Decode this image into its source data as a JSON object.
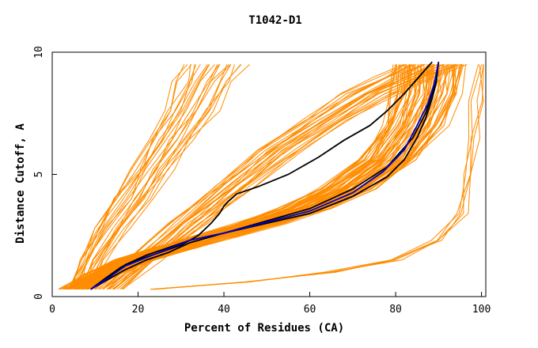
{
  "chart_data": {
    "type": "line",
    "title": "T1042-D1",
    "xlabel": "Percent of Residues (CA)",
    "ylabel": "Distance Cutoff, A",
    "xlim": [
      0,
      101
    ],
    "ylim": [
      0,
      10
    ],
    "x_ticks": [
      0,
      20,
      40,
      60,
      80,
      100
    ],
    "y_ticks": [
      0,
      5,
      10
    ],
    "grid": false,
    "colors": {
      "models": "#ff8c00",
      "highlight_black": "#000000",
      "highlight_blue": "#0000cc",
      "axis": "#000000"
    },
    "series_groups": [
      {
        "name": "Steep near-x-axis bundle",
        "color": "#ff8c00",
        "count": 22,
        "template_x": [
          3,
          6,
          10,
          14,
          18,
          22,
          26,
          29,
          31
        ],
        "template_y": [
          0.3,
          1.5,
          2.8,
          4,
          5.2,
          6.4,
          7.6,
          8.8,
          9.5
        ],
        "x_shift_range": [
          0,
          14
        ]
      },
      {
        "name": "Central models bundle",
        "color": "#ff8c00",
        "count": 60,
        "template_x": [
          6,
          12,
          20,
          30,
          40,
          50,
          60,
          70,
          80,
          86,
          89,
          90
        ],
        "template_y": [
          0.3,
          0.9,
          1.5,
          2.0,
          2.5,
          3.0,
          3.6,
          4.4,
          5.6,
          7.0,
          8.3,
          9.5
        ],
        "x_shift_range": [
          -10,
          6
        ]
      },
      {
        "name": "Upper fan models",
        "color": "#ff8c00",
        "count": 24,
        "template_x": [
          10,
          18,
          28,
          38,
          48,
          58,
          68,
          76,
          82
        ],
        "template_y": [
          0.3,
          1.5,
          3.0,
          4.5,
          6.0,
          7.2,
          8.3,
          9.0,
          9.5
        ],
        "x_shift_range": [
          0,
          14
        ]
      },
      {
        "name": "Bottom-right tail models",
        "color": "#ff8c00",
        "count": 5,
        "template_x": [
          24,
          45,
          65,
          80,
          90,
          95,
          97,
          98,
          99,
          100
        ],
        "template_y": [
          0.3,
          0.6,
          1.0,
          1.5,
          2.3,
          3.4,
          5.0,
          6.5,
          8.0,
          9.5
        ],
        "x_shift_range": [
          -1,
          1
        ]
      }
    ],
    "series": [
      {
        "name": "Black upper",
        "color": "#000000",
        "x": [
          9,
          12,
          16,
          20,
          25,
          30,
          34,
          37,
          39,
          40,
          41,
          43,
          48,
          55,
          62,
          68,
          74,
          78,
          82,
          85,
          87,
          88.5
        ],
        "y": [
          0.3,
          0.7,
          1.2,
          1.5,
          1.8,
          2.1,
          2.5,
          3.0,
          3.4,
          3.7,
          3.9,
          4.2,
          4.5,
          5.0,
          5.7,
          6.4,
          7.0,
          7.6,
          8.3,
          8.9,
          9.3,
          9.6
        ]
      },
      {
        "name": "Black middle",
        "color": "#000000",
        "x": [
          9,
          13,
          17,
          22,
          27,
          32,
          40,
          50,
          60,
          70,
          78,
          84,
          87,
          88.5,
          89.5,
          90
        ],
        "y": [
          0.3,
          0.8,
          1.3,
          1.7,
          2.0,
          2.3,
          2.6,
          3.1,
          3.6,
          4.4,
          5.3,
          6.5,
          7.5,
          8.3,
          9.0,
          9.6
        ]
      },
      {
        "name": "Black lower",
        "color": "#000000",
        "x": [
          9,
          13,
          17,
          22,
          27,
          32,
          40,
          50,
          60,
          70,
          78,
          82,
          85,
          87,
          88.5,
          89.5,
          90
        ],
        "y": [
          0.3,
          0.7,
          1.1,
          1.5,
          1.8,
          2.2,
          2.6,
          3.0,
          3.4,
          4.1,
          4.9,
          5.6,
          6.5,
          7.3,
          8.1,
          8.8,
          9.6
        ]
      },
      {
        "name": "Blue",
        "color": "#0000cc",
        "x": [
          9,
          13,
          17,
          22,
          27,
          32,
          40,
          50,
          60,
          70,
          77,
          82,
          85,
          87.5,
          89,
          90
        ],
        "y": [
          0.3,
          0.75,
          1.25,
          1.6,
          1.95,
          2.3,
          2.6,
          3.05,
          3.5,
          4.25,
          5.1,
          6.0,
          7.0,
          7.9,
          8.7,
          9.6
        ]
      }
    ]
  }
}
